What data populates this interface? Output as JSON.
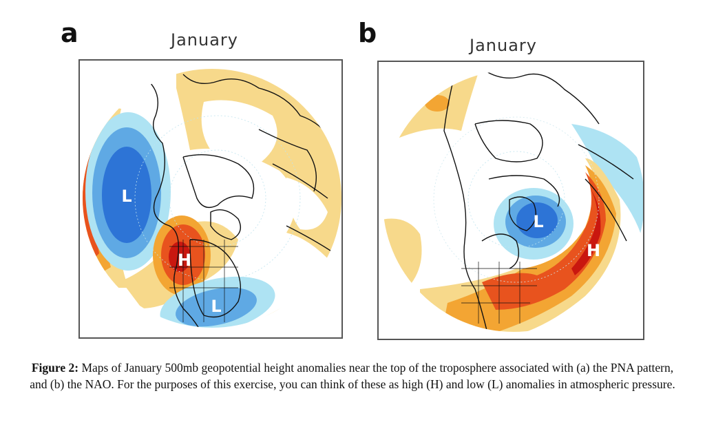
{
  "panels": [
    {
      "letter": "a",
      "title": "January",
      "pattern": "PNA",
      "markers": [
        {
          "label": "L",
          "kind": "low"
        },
        {
          "label": "H",
          "kind": "high"
        },
        {
          "label": "L",
          "kind": "low"
        }
      ]
    },
    {
      "letter": "b",
      "title": "January",
      "pattern": "NAO",
      "markers": [
        {
          "label": "L",
          "kind": "low"
        },
        {
          "label": "H",
          "kind": "high"
        }
      ]
    }
  ],
  "colors": {
    "high_light": "#f7d98b",
    "high_mid": "#f3a533",
    "high_strong": "#e8531e",
    "high_max": "#c9170f",
    "low_light": "#aee3f3",
    "low_mid": "#5fa9e4",
    "low_strong": "#2d74d6",
    "coast": "#111111"
  },
  "caption": {
    "label": "Figure 2:",
    "text": " Maps of January 500mb geopotential height anomalies near the top of the troposphere associated with (a) the PNA pattern, and (b) the NAO. For the purposes of this exercise, you can think of these as high (H) and low (L) anomalies in atmospheric pressure."
  }
}
